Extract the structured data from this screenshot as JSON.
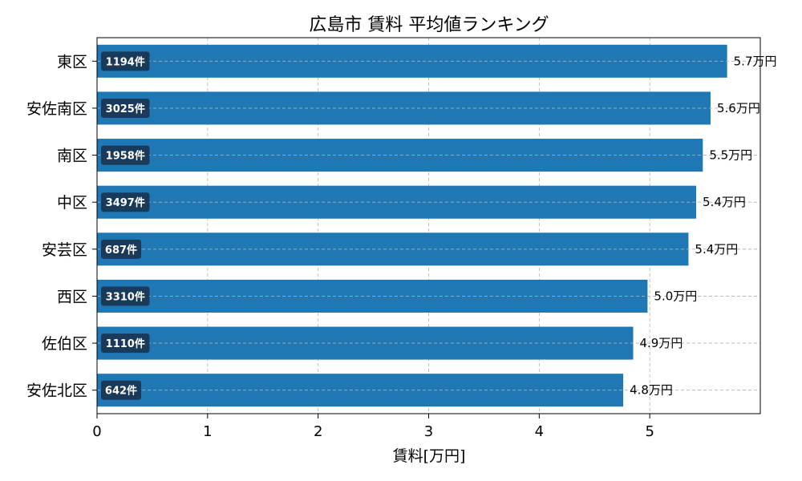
{
  "chart_data": {
    "type": "bar",
    "orientation": "horizontal",
    "title": "広島市 賃料 平均値ランキング",
    "xlabel": "賃料[万円]",
    "ylabel": "",
    "xlim": [
      0,
      6.0
    ],
    "xticks": [
      0,
      1,
      2,
      3,
      4,
      5
    ],
    "grid": true,
    "categories": [
      "東区",
      "安佐南区",
      "南区",
      "中区",
      "安芸区",
      "西区",
      "佐伯区",
      "安佐北区"
    ],
    "values": [
      5.7,
      5.55,
      5.48,
      5.42,
      5.35,
      4.98,
      4.85,
      4.76
    ],
    "value_labels": [
      "5.7万円",
      "5.6万円",
      "5.5万円",
      "5.4万円",
      "5.4万円",
      "5.0万円",
      "4.9万円",
      "4.8万円"
    ],
    "count_labels": [
      "1194件",
      "3025件",
      "1958件",
      "3497件",
      "687件",
      "3310件",
      "1110件",
      "642件"
    ],
    "colors": {
      "bar": "#1f77b4",
      "count_badge": "#1a3a5c",
      "grid": "#b0b0b0"
    }
  }
}
